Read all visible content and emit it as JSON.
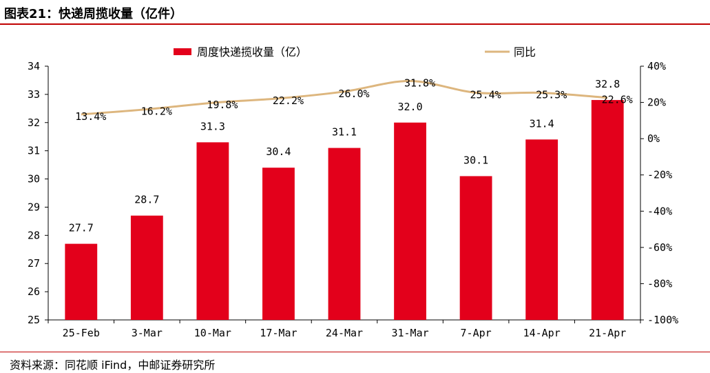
{
  "title": "图表21：快递周揽收量（亿件）",
  "source": "资料来源：同花顺 iFind，中邮证券研究所",
  "colors": {
    "bar": "#e3001b",
    "line": "#ddb67e",
    "rule": "#c00000"
  },
  "chart_data": {
    "type": "bar",
    "categories": [
      "25-Feb",
      "3-Mar",
      "10-Mar",
      "17-Mar",
      "24-Mar",
      "31-Mar",
      "7-Apr",
      "14-Apr",
      "21-Apr"
    ],
    "series": [
      {
        "name": "周度快递揽收量（亿）",
        "type": "bar",
        "axis": "left",
        "values": [
          27.7,
          28.7,
          31.3,
          30.4,
          31.1,
          32.0,
          30.1,
          31.4,
          32.8
        ],
        "labels": [
          "27.7",
          "28.7",
          "31.3",
          "30.4",
          "31.1",
          "32.0",
          "30.1",
          "31.4",
          "32.8"
        ]
      },
      {
        "name": "同比",
        "type": "line",
        "axis": "right",
        "values": [
          13.4,
          16.2,
          19.8,
          22.2,
          26.0,
          31.8,
          25.4,
          25.3,
          22.6
        ],
        "labels": [
          "13.4%",
          "16.2%",
          "19.8%",
          "22.2%",
          "26.0%",
          "31.8%",
          "25.4%",
          "25.3%",
          "22.6%"
        ]
      }
    ],
    "left_axis": {
      "ylim": [
        25,
        34
      ],
      "ticks": [
        "25",
        "26",
        "27",
        "28",
        "29",
        "30",
        "31",
        "32",
        "33",
        "34"
      ]
    },
    "right_axis": {
      "ylim": [
        -100,
        40
      ],
      "unit": "%",
      "ticks": [
        "-100%",
        "-80%",
        "-60%",
        "-40%",
        "-20%",
        "0%",
        "20%",
        "40%"
      ]
    },
    "legend_placement": "top",
    "grid": false
  }
}
